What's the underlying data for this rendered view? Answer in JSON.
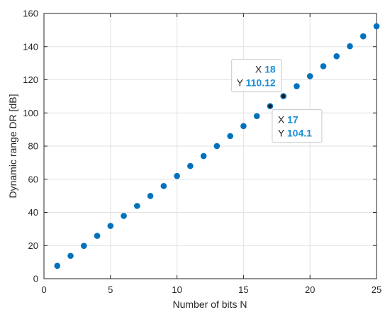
{
  "chart_data": {
    "type": "scatter",
    "xlabel": "Number of bits N",
    "ylabel": "Dynamic range DR [dB]",
    "xlim": [
      0,
      25
    ],
    "ylim": [
      0,
      160
    ],
    "xticks": [
      0,
      5,
      10,
      15,
      20,
      25
    ],
    "yticks": [
      0,
      20,
      40,
      60,
      80,
      100,
      120,
      140,
      160
    ],
    "grid": true,
    "legend": "none",
    "marker_color": "#0072bd",
    "series": [
      {
        "x": [
          1,
          2,
          3,
          4,
          5,
          6,
          7,
          8,
          9,
          10,
          11,
          12,
          13,
          14,
          15,
          16,
          17,
          18,
          19,
          20,
          21,
          22,
          23,
          24,
          25
        ],
        "y": [
          7.78,
          13.8,
          19.82,
          25.84,
          31.86,
          37.88,
          43.9,
          49.92,
          55.94,
          61.96,
          67.98,
          74.0,
          80.02,
          86.04,
          92.06,
          98.08,
          104.1,
          110.12,
          116.14,
          122.16,
          128.18,
          134.2,
          140.22,
          146.24,
          152.26
        ]
      }
    ],
    "datatips": [
      {
        "x_label": "X",
        "x_value": "18",
        "y_label": "Y",
        "y_value": "110.12",
        "x": 18,
        "y": 110.12,
        "placement": "upper-left"
      },
      {
        "x_label": "X",
        "x_value": "17",
        "y_label": "Y",
        "y_value": "104.1",
        "x": 17,
        "y": 104.1,
        "placement": "lower-right"
      }
    ]
  }
}
